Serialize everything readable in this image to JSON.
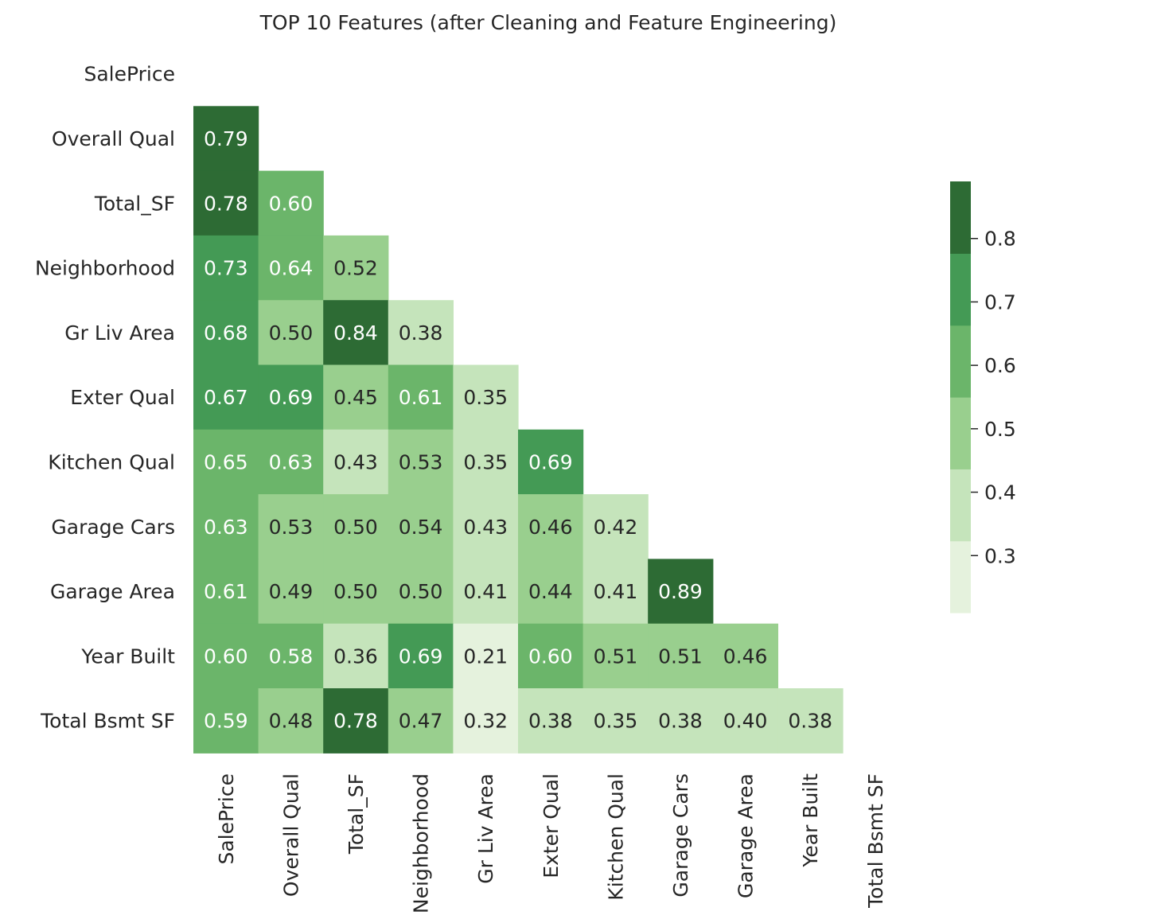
{
  "chart_data": {
    "type": "heatmap",
    "title": "TOP 10 Features (after Cleaning and Feature Engineering)",
    "xlabel": "",
    "ylabel": "",
    "mask": "upper-triangle-including-diagonal",
    "labels": [
      "SalePrice",
      "Overall Qual",
      "Total_SF",
      "Neighborhood",
      "Gr Liv Area",
      "Exter Qual",
      "Kitchen Qual",
      "Garage Cars",
      "Garage Area",
      "Year Built",
      "Total Bsmt SF"
    ],
    "rows": [
      [],
      [
        0.79
      ],
      [
        0.78,
        0.6
      ],
      [
        0.73,
        0.64,
        0.52
      ],
      [
        0.68,
        0.5,
        0.84,
        0.38
      ],
      [
        0.67,
        0.69,
        0.45,
        0.61,
        0.35
      ],
      [
        0.65,
        0.63,
        0.43,
        0.53,
        0.35,
        0.69
      ],
      [
        0.63,
        0.53,
        0.5,
        0.54,
        0.43,
        0.46,
        0.42
      ],
      [
        0.61,
        0.49,
        0.5,
        0.5,
        0.41,
        0.44,
        0.41,
        0.89
      ],
      [
        0.6,
        0.58,
        0.36,
        0.69,
        0.21,
        0.6,
        0.51,
        0.51,
        0.46
      ],
      [
        0.59,
        0.48,
        0.78,
        0.47,
        0.32,
        0.38,
        0.35,
        0.38,
        0.4,
        0.38
      ]
    ],
    "value_format": "0.00",
    "colorbar": {
      "min": 0.21,
      "max": 0.89,
      "ticks": [
        0.3,
        0.4,
        0.5,
        0.6,
        0.7,
        0.8
      ],
      "tick_labels": [
        "0.3",
        "0.4",
        "0.5",
        "0.6",
        "0.7",
        "0.8"
      ],
      "palette": [
        "#e5f2dd",
        "#c5e4bb",
        "#99cf8e",
        "#6bb56a",
        "#449a55",
        "#2d6b34"
      ]
    },
    "text_color_light": "#ffffff",
    "text_color_dark": "#262626"
  }
}
